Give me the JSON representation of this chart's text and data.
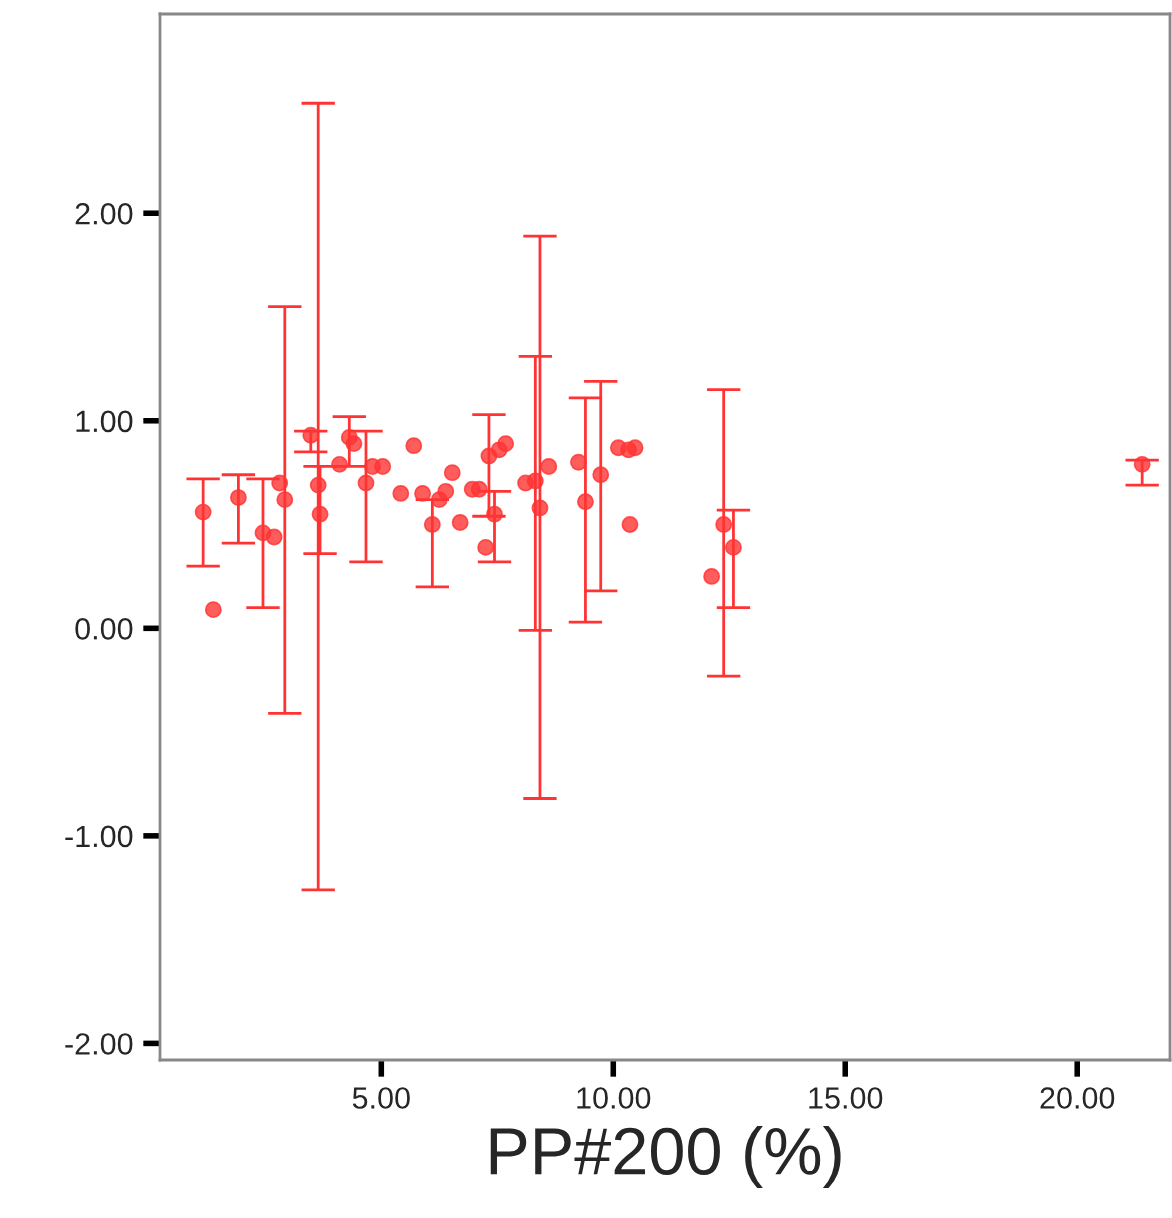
{
  "chart_data": {
    "type": "scatter",
    "xlabel": "PP#200 (%)",
    "x": [
      1.16,
      1.38,
      1.92,
      2.45,
      2.69,
      2.81,
      2.92,
      3.48,
      3.64,
      3.68,
      4.1,
      4.31,
      4.41,
      4.67,
      4.81,
      5.03,
      5.42,
      5.7,
      5.89,
      6.1,
      6.25,
      6.39,
      6.53,
      6.7,
      6.96,
      7.11,
      7.25,
      7.32,
      7.44,
      7.54,
      7.68,
      8.11,
      8.32,
      8.42,
      8.61,
      9.25,
      9.4,
      9.73,
      10.11,
      10.33,
      10.36,
      10.47,
      12.12,
      12.38,
      12.59,
      21.4
    ],
    "values": [
      0.56,
      0.09,
      0.63,
      0.46,
      0.44,
      0.7,
      0.62,
      0.93,
      0.69,
      0.55,
      0.79,
      0.92,
      0.89,
      0.7,
      0.78,
      0.78,
      0.65,
      0.88,
      0.65,
      0.5,
      0.62,
      0.66,
      0.75,
      0.51,
      0.67,
      0.67,
      0.39,
      0.83,
      0.55,
      0.86,
      0.89,
      0.7,
      0.71,
      0.58,
      0.78,
      0.8,
      0.61,
      0.74,
      0.87,
      0.86,
      0.5,
      0.87,
      0.25,
      0.5,
      0.39,
      0.79
    ],
    "errors": [
      [
        0.3,
        0.72
      ],
      null,
      [
        0.41,
        0.74
      ],
      [
        0.1,
        0.72
      ],
      null,
      null,
      [
        -0.41,
        1.55
      ],
      [
        0.85,
        0.95
      ],
      [
        -1.26,
        2.53
      ],
      [
        0.36,
        0.78
      ],
      null,
      [
        0.78,
        1.02
      ],
      null,
      [
        0.32,
        0.95
      ],
      null,
      null,
      null,
      null,
      null,
      [
        0.2,
        0.62
      ],
      null,
      null,
      null,
      null,
      null,
      null,
      null,
      [
        0.54,
        1.03
      ],
      [
        0.32,
        0.66
      ],
      null,
      null,
      null,
      [
        -0.01,
        1.31
      ],
      [
        -0.82,
        1.89
      ],
      null,
      null,
      [
        0.03,
        1.11
      ],
      [
        0.18,
        1.19
      ],
      null,
      null,
      null,
      null,
      null,
      [
        -0.23,
        1.15
      ],
      [
        0.1,
        0.57
      ],
      [
        0.69,
        0.81
      ]
    ],
    "color": "#ff3333",
    "marker": "circle",
    "xlim": [
      0.23,
      22.0
    ],
    "ylim": [
      -2.08,
      2.96
    ],
    "xticks": [
      {
        "value": 5,
        "label": "5.00"
      },
      {
        "value": 10,
        "label": "10.00"
      },
      {
        "value": 15,
        "label": "15.00"
      },
      {
        "value": 20,
        "label": "20.00"
      }
    ],
    "yticks": [
      {
        "value": -2,
        "label": "-2.00"
      },
      {
        "value": -1,
        "label": "-1.00"
      },
      {
        "value": 0,
        "label": "0.00"
      },
      {
        "value": 1,
        "label": "1.00"
      },
      {
        "value": 2,
        "label": "2.00"
      }
    ],
    "grid": false
  }
}
